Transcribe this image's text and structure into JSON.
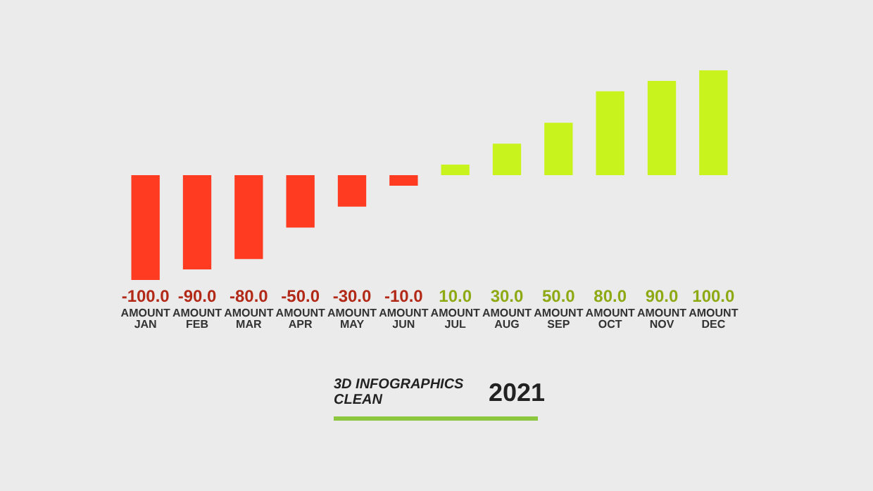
{
  "chart_data": {
    "type": "bar",
    "title": "3D INFOGRAPHICS CLEAN",
    "subtitle": "2021",
    "categories": [
      "AMOUNT\nJAN",
      "AMOUNT\nFEB",
      "AMOUNT\nMAR",
      "AMOUNT\nAPR",
      "AMOUNT\nMAY",
      "AMOUNT\nJUN",
      "AMOUNT\nJUL",
      "AMOUNT\nAUG",
      "AMOUNT\nSEP",
      "AMOUNT\nOCT",
      "AMOUNT\nNOV",
      "AMOUNT\nDEC"
    ],
    "values": [
      -100,
      -90,
      -80,
      -50,
      -30,
      -10,
      10,
      30,
      50,
      80,
      90,
      100
    ],
    "value_labels": [
      "-100.0",
      "-90.0",
      "-80.0",
      "-50.0",
      "-30.0",
      "-10.0",
      "10.0",
      "30.0",
      "50.0",
      "80.0",
      "90.0",
      "100.0"
    ],
    "colors": [
      "#ff3b22",
      "#ff3b22",
      "#ff3b22",
      "#ff3b22",
      "#ff3b22",
      "#ff3b22",
      "#c9f31d",
      "#c9f31d",
      "#c9f31d",
      "#c9f31d",
      "#c9f31d",
      "#c9f31d"
    ],
    "ylim": [
      -100,
      100
    ],
    "tick_labels": "x",
    "grid": false,
    "legend": false
  }
}
